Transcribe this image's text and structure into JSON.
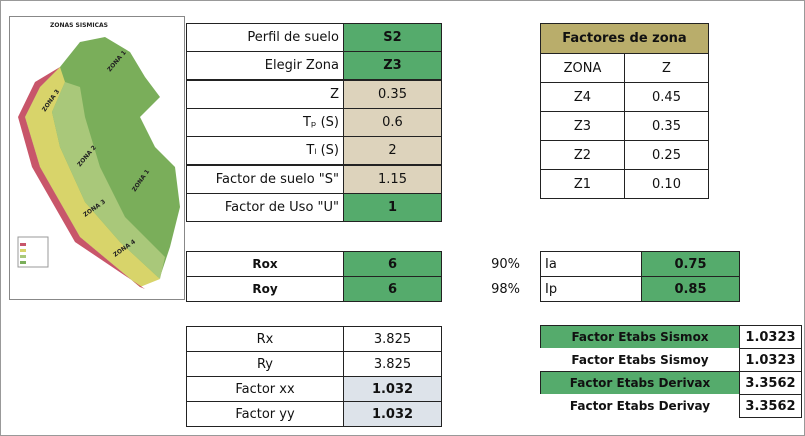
{
  "map": {
    "title": "ZONAS SISMICAS",
    "labels": [
      "ZONA 1",
      "ZONA 3",
      "ZONA 2",
      "ZONA 1",
      "ZONA 3",
      "ZONA 4"
    ]
  },
  "soil_table": {
    "rows": [
      [
        "Perfil de suelo",
        "S2"
      ],
      [
        "Elegir Zona",
        "Z3"
      ],
      [
        "Z",
        "0.35"
      ],
      [
        "Tₚ (S)",
        "0.6"
      ],
      [
        "Tₗ (S)",
        "2"
      ],
      [
        "Factor de suelo \"S\"",
        "1.15"
      ],
      [
        "Factor de Uso \"U\"",
        "1"
      ]
    ]
  },
  "zone_table": {
    "title": "Factores de zona",
    "headers": [
      "ZONA",
      "Z"
    ],
    "rows": [
      [
        "Z4",
        "0.45"
      ],
      [
        "Z3",
        "0.35"
      ],
      [
        "Z2",
        "0.25"
      ],
      [
        "Z1",
        "0.10"
      ]
    ]
  },
  "r_table": {
    "rows": [
      [
        "Rox",
        "6",
        "90%"
      ],
      [
        "Roy",
        "6",
        "98%"
      ]
    ]
  },
  "i_table": {
    "rows": [
      [
        "Ia",
        "0.75"
      ],
      [
        "Ip",
        "0.85"
      ]
    ]
  },
  "factor_table": {
    "rows": [
      [
        "Rx",
        "3.825"
      ],
      [
        "Ry",
        "3.825"
      ],
      [
        "Factor xx",
        "1.032"
      ],
      [
        "Factor yy",
        "1.032"
      ]
    ]
  },
  "etabs_table": {
    "rows": [
      [
        "Factor Etabs Sismox",
        "1.0323"
      ],
      [
        "Factor Etabs Sismoy",
        "1.0323"
      ],
      [
        "Factor Etabs Derivax",
        "3.3562"
      ],
      [
        "Factor Etabs Derivay",
        "3.3562"
      ]
    ]
  }
}
